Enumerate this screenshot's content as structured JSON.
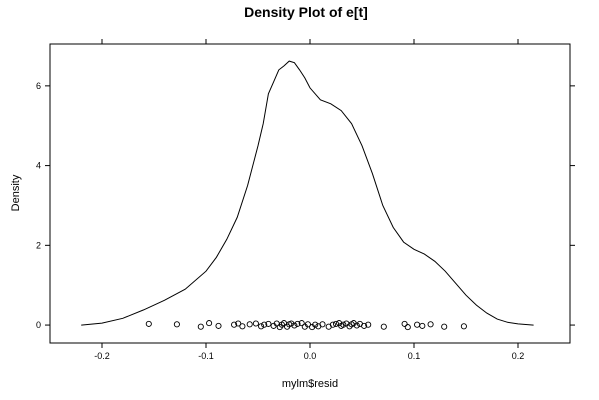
{
  "chart_data": {
    "type": "line",
    "title": "Density Plot of e[t]",
    "xlabel": "mylm$resid",
    "ylabel": "Density",
    "xlim": [
      -0.25,
      0.25
    ],
    "ylim": [
      -0.45,
      7.05
    ],
    "x_ticks": [
      -0.2,
      -0.1,
      0.0,
      0.1,
      0.2
    ],
    "x_tick_labels": [
      "-0.2",
      "-0.1",
      "0.0",
      "0.1",
      "0.2"
    ],
    "y_ticks": [
      0,
      2,
      4,
      6
    ],
    "y_tick_labels": [
      "0",
      "2",
      "4",
      "6"
    ],
    "grid": false,
    "legend": "none",
    "density_curve": {
      "x": [
        -0.22,
        -0.2,
        -0.18,
        -0.16,
        -0.14,
        -0.12,
        -0.1,
        -0.09,
        -0.08,
        -0.07,
        -0.06,
        -0.05,
        -0.045,
        -0.04,
        -0.035,
        -0.03,
        -0.025,
        -0.02,
        -0.015,
        -0.01,
        -0.005,
        0.0,
        0.01,
        0.02,
        0.03,
        0.04,
        0.05,
        0.06,
        0.07,
        0.08,
        0.09,
        0.1,
        0.11,
        0.12,
        0.13,
        0.14,
        0.15,
        0.16,
        0.17,
        0.18,
        0.19,
        0.2,
        0.215
      ],
      "y": [
        0.0,
        0.05,
        0.17,
        0.38,
        0.62,
        0.9,
        1.35,
        1.7,
        2.15,
        2.7,
        3.5,
        4.5,
        5.05,
        5.8,
        6.1,
        6.4,
        6.5,
        6.62,
        6.58,
        6.4,
        6.2,
        5.95,
        5.65,
        5.55,
        5.38,
        5.05,
        4.5,
        3.8,
        3.0,
        2.45,
        2.08,
        1.9,
        1.78,
        1.6,
        1.35,
        1.05,
        0.75,
        0.5,
        0.3,
        0.15,
        0.07,
        0.03,
        0.0
      ]
    },
    "rug_points": {
      "x": [
        -0.155,
        -0.128,
        -0.105,
        -0.097,
        -0.088,
        -0.073,
        -0.069,
        -0.065,
        -0.058,
        -0.052,
        -0.047,
        -0.044,
        -0.04,
        -0.035,
        -0.032,
        -0.029,
        -0.027,
        -0.025,
        -0.022,
        -0.02,
        -0.018,
        -0.015,
        -0.012,
        -0.008,
        -0.005,
        -0.002,
        0.002,
        0.005,
        0.008,
        0.012,
        0.018,
        0.022,
        0.025,
        0.028,
        0.03,
        0.032,
        0.035,
        0.038,
        0.04,
        0.042,
        0.045,
        0.048,
        0.052,
        0.056,
        0.071,
        0.091,
        0.094,
        0.103,
        0.108,
        0.116,
        0.129,
        0.148
      ],
      "y": [
        0.03,
        0.02,
        -0.04,
        0.05,
        -0.02,
        0.01,
        0.04,
        -0.03,
        0.02,
        0.04,
        -0.03,
        0.01,
        0.03,
        -0.02,
        0.04,
        -0.05,
        0.01,
        0.05,
        -0.04,
        0.02,
        0.04,
        -0.01,
        0.03,
        0.05,
        -0.04,
        0.02,
        -0.05,
        0.01,
        -0.03,
        0.02,
        -0.04,
        0.01,
        0.03,
        0.05,
        -0.02,
        0.01,
        0.04,
        -0.03,
        0.02,
        0.05,
        -0.01,
        0.03,
        -0.02,
        0.01,
        -0.04,
        0.03,
        -0.05,
        0.01,
        -0.02,
        0.02,
        -0.04,
        -0.03
      ]
    }
  }
}
